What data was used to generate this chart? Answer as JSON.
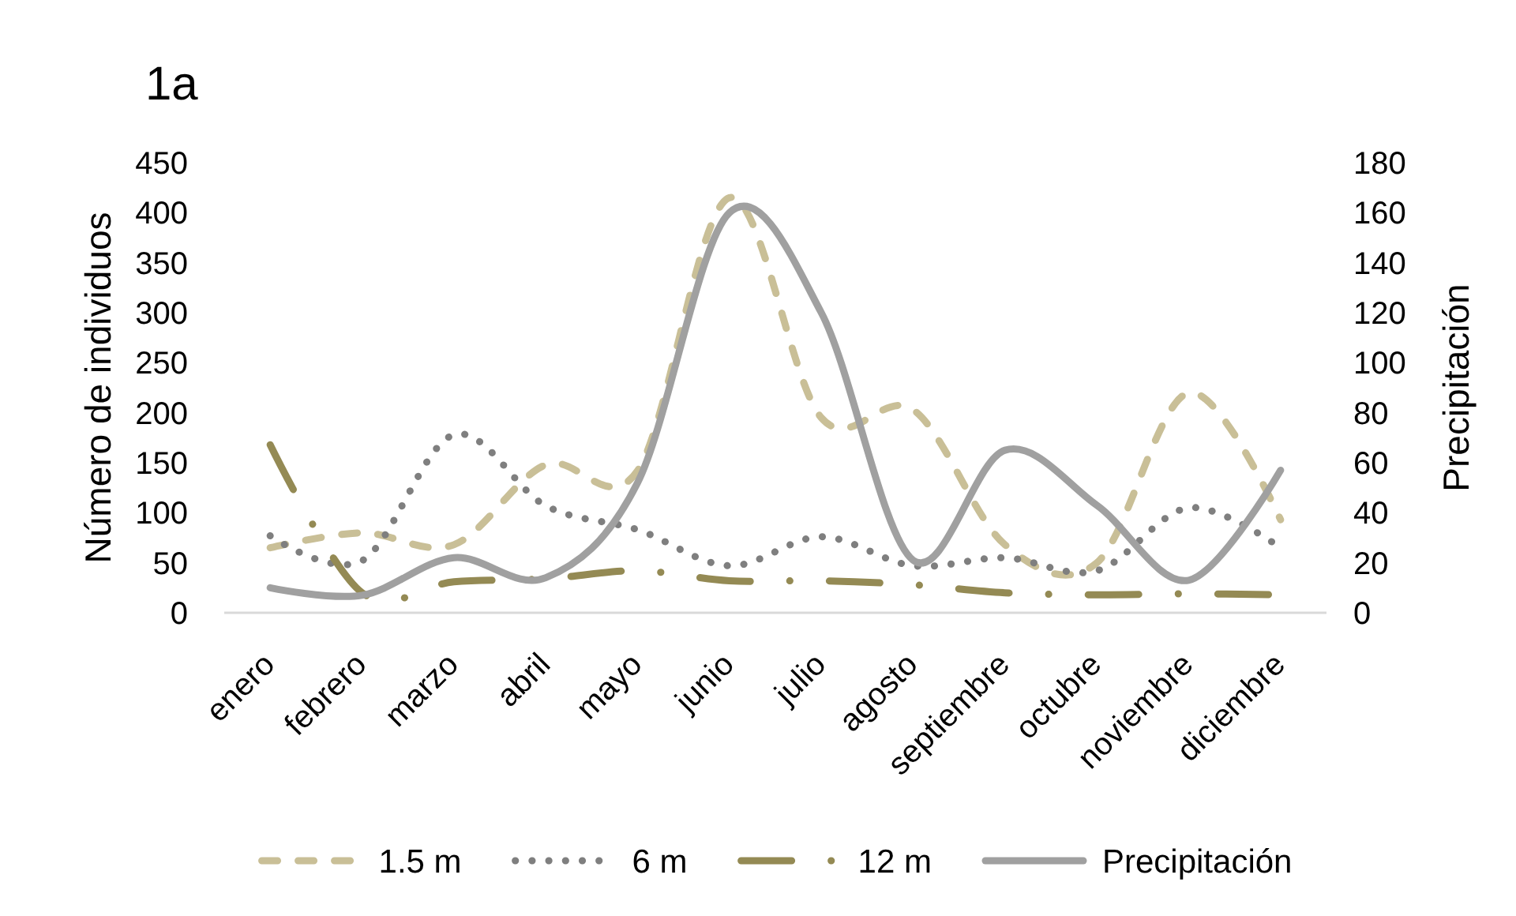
{
  "chart_data": {
    "type": "line",
    "title": "1a",
    "ylabel": "Número de individuos",
    "y2label": "Precipitación",
    "categories": [
      "enero",
      "febrero",
      "marzo",
      "abril",
      "mayo",
      "junio",
      "julio",
      "agosto",
      "septiembre",
      "octubre",
      "noviembre",
      "diciembre"
    ],
    "series": [
      {
        "name": "1.5 m",
        "color": "#c9bf97",
        "line_style": "dashed",
        "values": [
          65,
          80,
          68,
          148,
          142,
          415,
          195,
          203,
          68,
          50,
          220,
          93
        ]
      },
      {
        "name": "6 m",
        "color": "#7f7f7f",
        "line_style": "dotted",
        "values": [
          77,
          52,
          178,
          107,
          83,
          47,
          76,
          47,
          55,
          42,
          105,
          65
        ]
      },
      {
        "name": "12 m",
        "color": "#948a54",
        "line_style": "dashdot",
        "values": [
          168,
          20,
          31,
          34,
          42,
          32,
          32,
          28,
          20,
          18,
          19,
          18
        ]
      },
      {
        "name": "Precipitación",
        "color": "#a0a0a0",
        "line_style": "solid",
        "axis": "y2",
        "values": [
          10,
          7,
          22,
          14,
          52,
          160,
          120,
          21,
          65,
          43,
          13,
          57
        ]
      }
    ],
    "ylim": [
      0,
      450
    ],
    "yticks": [
      0,
      50,
      100,
      150,
      200,
      250,
      300,
      350,
      400,
      450
    ],
    "y2lim": [
      0,
      180
    ],
    "y2ticks": [
      0,
      20,
      40,
      60,
      80,
      100,
      120,
      140,
      160,
      180
    ],
    "legend": "bottom"
  }
}
